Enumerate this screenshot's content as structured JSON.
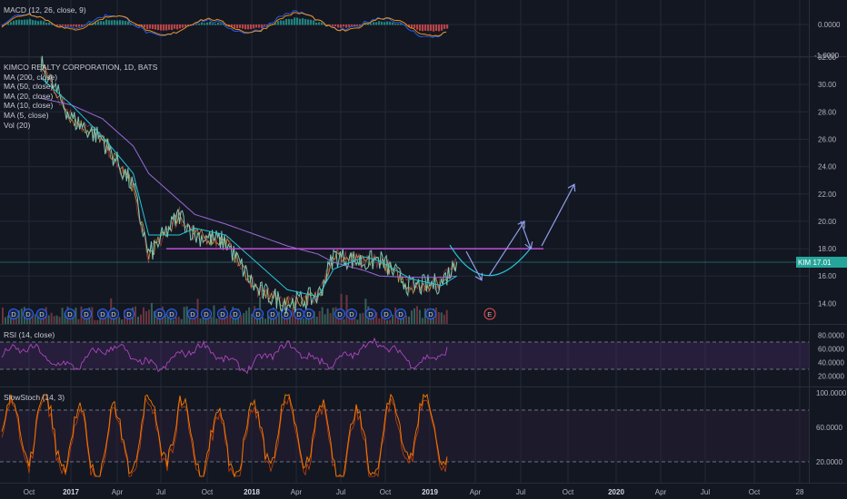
{
  "colors": {
    "background": "#131722",
    "grid": "#232838",
    "price": "#7cc7b3",
    "ma200": "#9b6ad6",
    "ma50": "#26c6da",
    "ma_short": "#ffd54f",
    "resistance": "#c050d8",
    "projection_curve": "#26c6da",
    "arrows": "#8f9ee8",
    "volume_up": "#3d6b63",
    "volume_down": "#7a3b44",
    "rsi": "#ab47bc",
    "stoch": "#f57c00",
    "macd": "#2962ff",
    "signal": "#ff9800",
    "price_tag": "#26a69a"
  },
  "macd_panel": {
    "legend": "MACD (12, 26, close, 9)",
    "ticks": [
      "0.0000",
      "-1.0000"
    ]
  },
  "price_panel": {
    "legend": [
      "KIMCO REALTY CORPORATION, 1D, BATS",
      "MA (200, close)",
      "MA (50, close)",
      "MA (20, close)",
      "MA (10, close)",
      "MA (5, close)",
      "Vol (20)"
    ],
    "price_tag": {
      "symbol": "KIM",
      "value": "17.01"
    },
    "dividend_marker": "D",
    "earnings_marker": "E"
  },
  "rsi_panel": {
    "legend": "RSI (14, close)",
    "ticks": [
      "80.0000",
      "60.0000",
      "40.0000",
      "20.0000"
    ]
  },
  "stoch_panel": {
    "legend": "SlowStoch (14, 3)",
    "ticks": [
      "100.0000",
      "60.0000",
      "20.0000"
    ]
  },
  "x_axis": {
    "labels": [
      "Oct",
      "2017",
      "Apr",
      "Jul",
      "Oct",
      "2018",
      "Apr",
      "Jul",
      "Oct",
      "2019",
      "Apr",
      "Jul",
      "Oct",
      "2020",
      "Apr",
      "Jul",
      "Oct",
      "28"
    ],
    "bold": [
      "2017",
      "2018",
      "2019",
      "2020"
    ]
  },
  "chart_data": {
    "type": "line",
    "ylim": [
      12.5,
      32.0
    ],
    "y_ticks": [
      32,
      30,
      28,
      26,
      24,
      22,
      20,
      18,
      16,
      14
    ],
    "y_tick_labels": [
      "32.00",
      "30.00",
      "28.00",
      "26.00",
      "24.00",
      "22.00",
      "20.00",
      "18.00",
      "16.00",
      "14.00"
    ],
    "x": [
      "2016-10",
      "2016-12",
      "2017-02",
      "2017-04",
      "2017-05",
      "2017-07",
      "2017-08",
      "2017-10",
      "2017-12",
      "2018-02",
      "2018-04",
      "2018-05",
      "2018-07",
      "2018-08",
      "2018-10",
      "2018-12",
      "2019-01"
    ],
    "series": [
      {
        "name": "KIM",
        "values": [
          31.5,
          27.5,
          26.0,
          22.5,
          17.5,
          20.5,
          19.0,
          18.5,
          15.0,
          14.0,
          14.5,
          17.5,
          17.0,
          17.2,
          15.2,
          15.5,
          17.0
        ]
      },
      {
        "name": "MA (200, close)",
        "values": [
          29.0,
          28.5,
          27.5,
          25.5,
          23.5,
          21.5,
          20.5,
          19.8,
          19.0,
          18.2,
          17.6,
          17.0,
          16.4,
          16.0,
          15.9,
          15.9,
          16.0
        ]
      },
      {
        "name": "MA (50, close)",
        "values": [
          30.5,
          28.5,
          26.2,
          23.5,
          19.0,
          19.0,
          19.5,
          19.0,
          17.0,
          15.0,
          14.5,
          16.5,
          17.4,
          17.1,
          15.8,
          15.3,
          16.0
        ]
      }
    ],
    "annotations": {
      "resistance_level": 18.0,
      "last_price": 17.01,
      "projection_cup_low": 15.6,
      "projection_arrow_targets": [
        15.7,
        20.0,
        18.0,
        22.7
      ]
    },
    "rsi_levels": [
      70,
      30
    ],
    "stoch_levels": [
      80,
      20
    ]
  }
}
